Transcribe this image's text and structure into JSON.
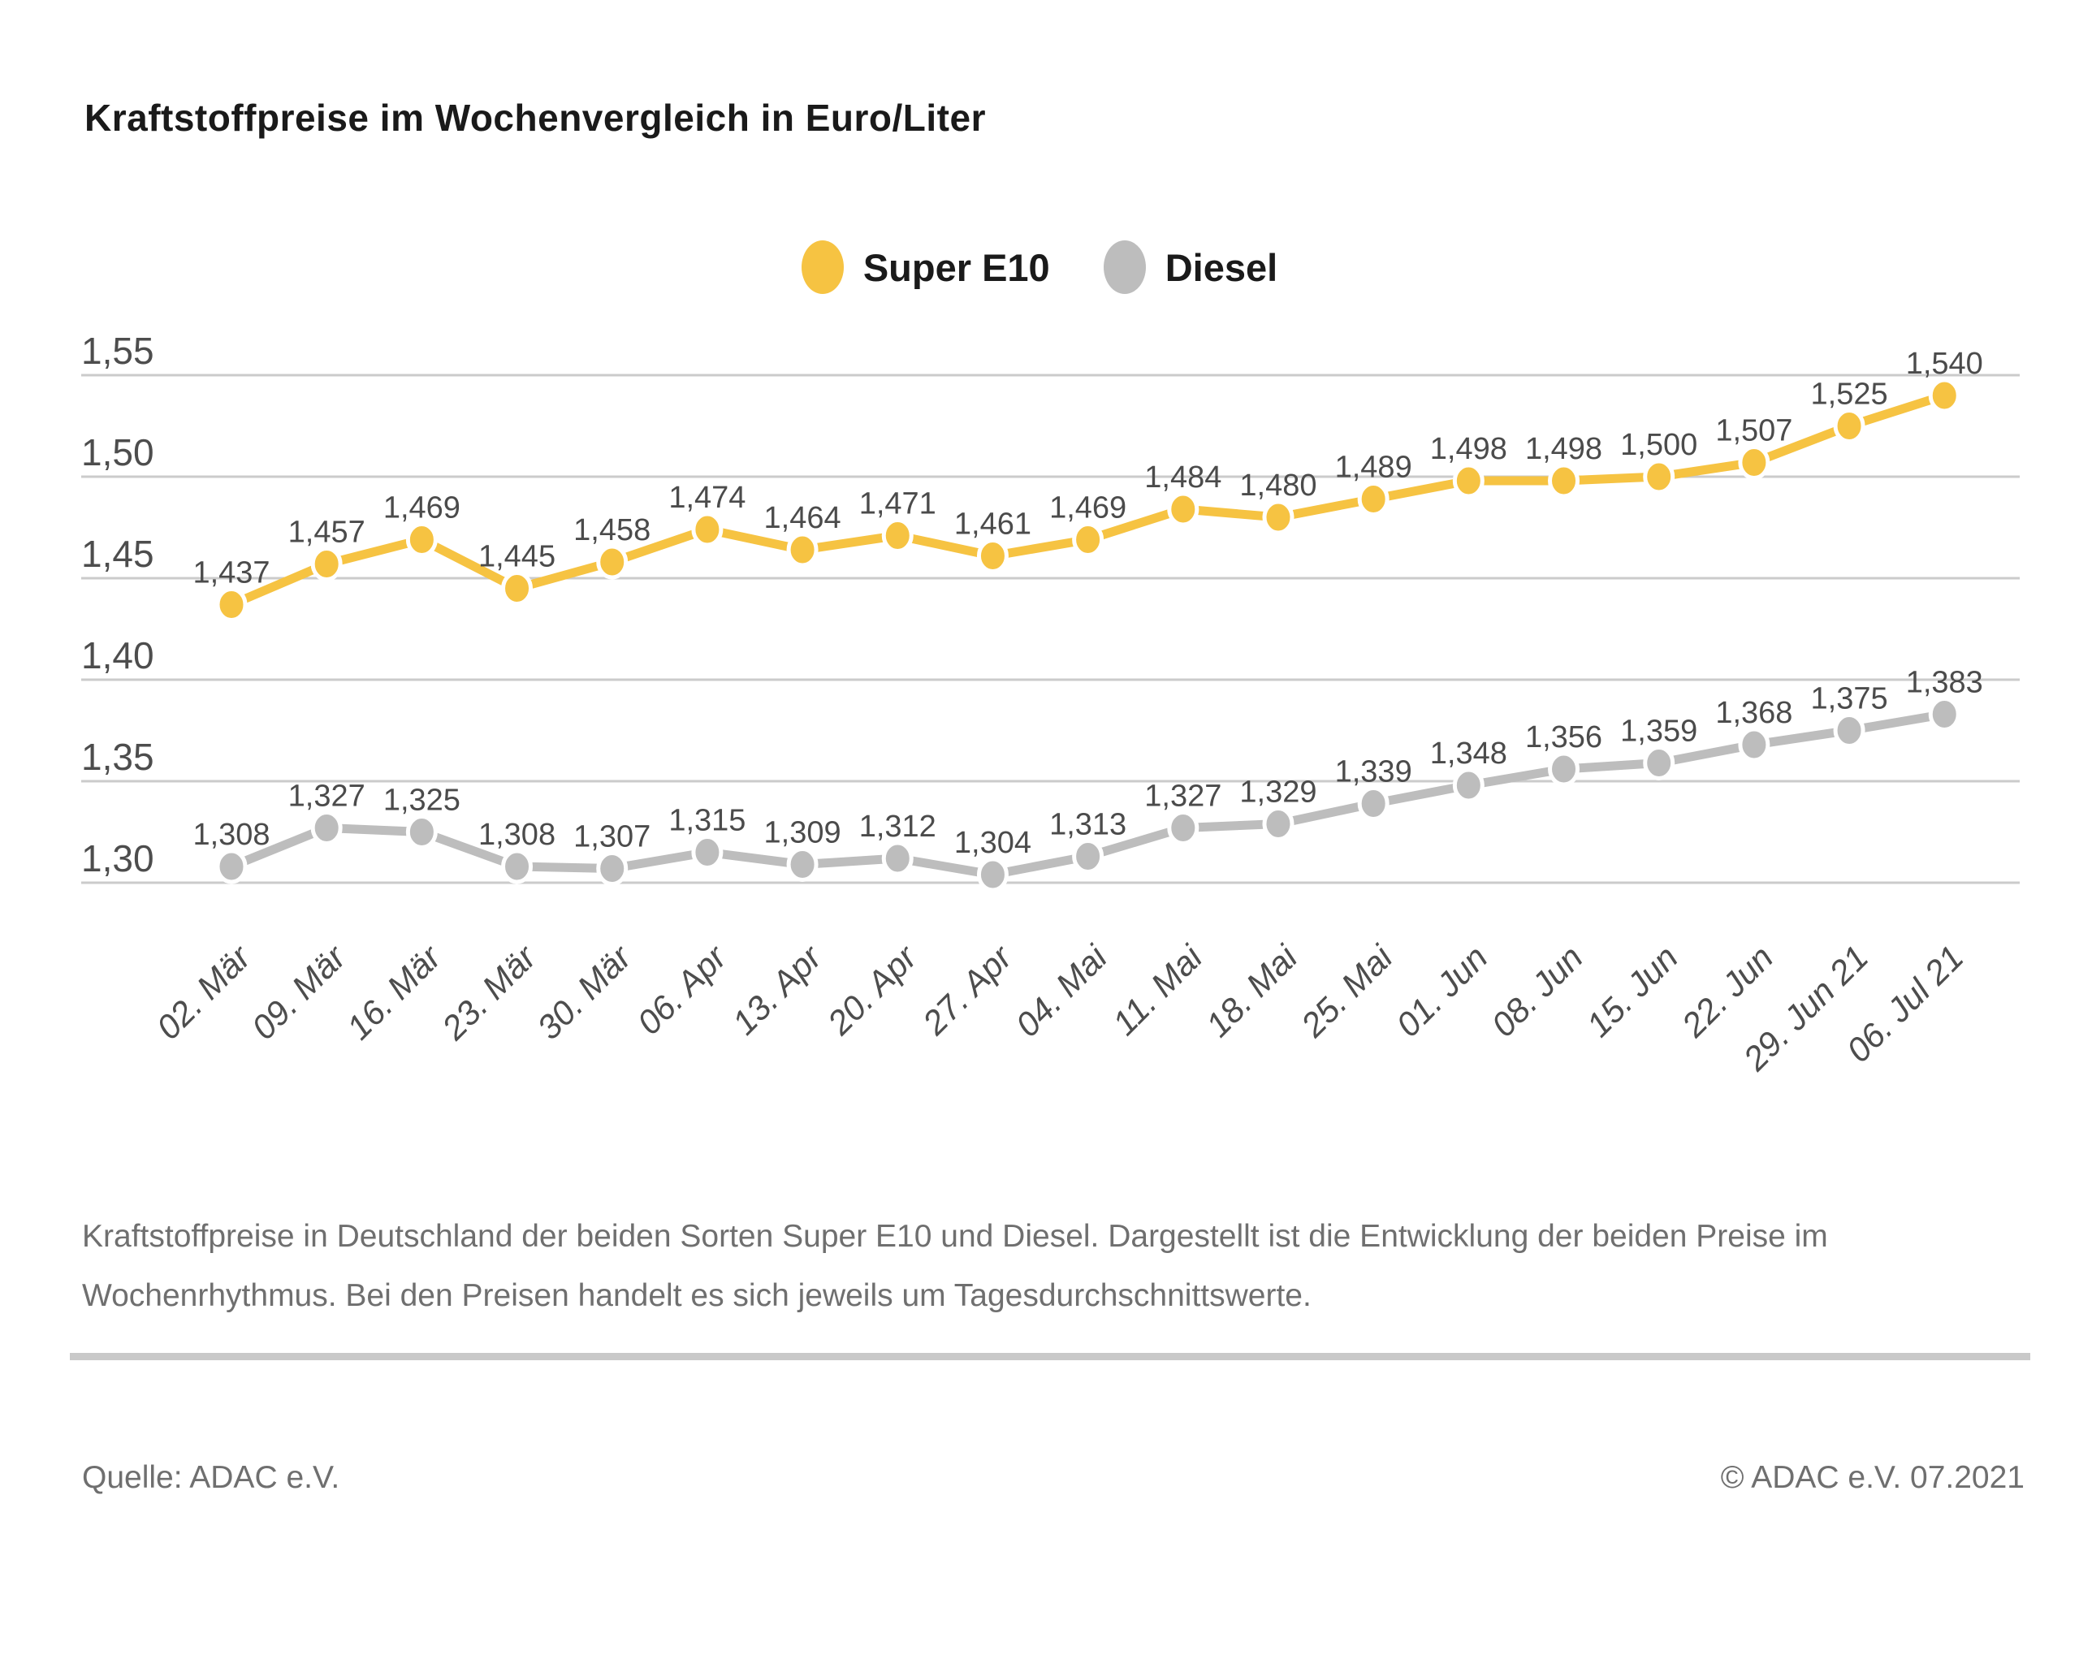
{
  "title": "Kraftstoffpreise im Wochenvergleich in Euro/Liter",
  "chart_data": {
    "type": "line",
    "title": "Kraftstoffpreise im Wochenvergleich in Euro/Liter",
    "categories": [
      "02. Mär",
      "09. Mär",
      "16. Mär",
      "23. Mär",
      "30. Mär",
      "06. Apr",
      "13. Apr",
      "20. Apr",
      "27. Apr",
      "04. Mai",
      "11. Mai",
      "18. Mai",
      "25. Mai",
      "01. Jun",
      "08. Jun",
      "15. Jun",
      "22. Jun",
      "29. Jun 21",
      "06. Jul 21"
    ],
    "series": [
      {
        "name": "Super E10",
        "color": "#F6C342",
        "values": [
          1.437,
          1.457,
          1.469,
          1.445,
          1.458,
          1.474,
          1.464,
          1.471,
          1.461,
          1.469,
          1.484,
          1.48,
          1.489,
          1.498,
          1.498,
          1.5,
          1.507,
          1.525,
          1.54
        ]
      },
      {
        "name": "Diesel",
        "color": "#BDBDBD",
        "values": [
          1.308,
          1.327,
          1.325,
          1.308,
          1.307,
          1.315,
          1.309,
          1.312,
          1.304,
          1.313,
          1.327,
          1.329,
          1.339,
          1.348,
          1.356,
          1.359,
          1.368,
          1.375,
          1.383
        ]
      }
    ],
    "yticks": [
      1.55,
      1.5,
      1.45,
      1.4,
      1.35,
      1.3
    ],
    "ylim": [
      1.275,
      1.575
    ],
    "ylabel": "",
    "xlabel": "",
    "grid": true,
    "legend_position": "top-center",
    "value_labels": true,
    "number_format": "decimal-comma",
    "x_tick_rotation": -45
  },
  "description": {
    "lines": [
      "Kraftstoffpreise in Deutschland der beiden Sorten Super E10 und Diesel. Dargestellt ist die Entwicklung der beiden Preise im",
      "Wochenrhythmus. Bei den Preisen handelt es sich jeweils um Tagesdurchschnittswerte."
    ]
  },
  "footer": {
    "source": "Quelle: ADAC e.V.",
    "copyright": "© ADAC e.V. 07.2021"
  },
  "colors": {
    "grid": "#CBCBCB",
    "value_label": "#4B4B4B",
    "axis_label": "#4D4D4D",
    "text_gray": "#6F6F6F",
    "title": "#1A1A1A",
    "divider": "#C9C9C9",
    "dot_outline": "#FFFFFF"
  }
}
